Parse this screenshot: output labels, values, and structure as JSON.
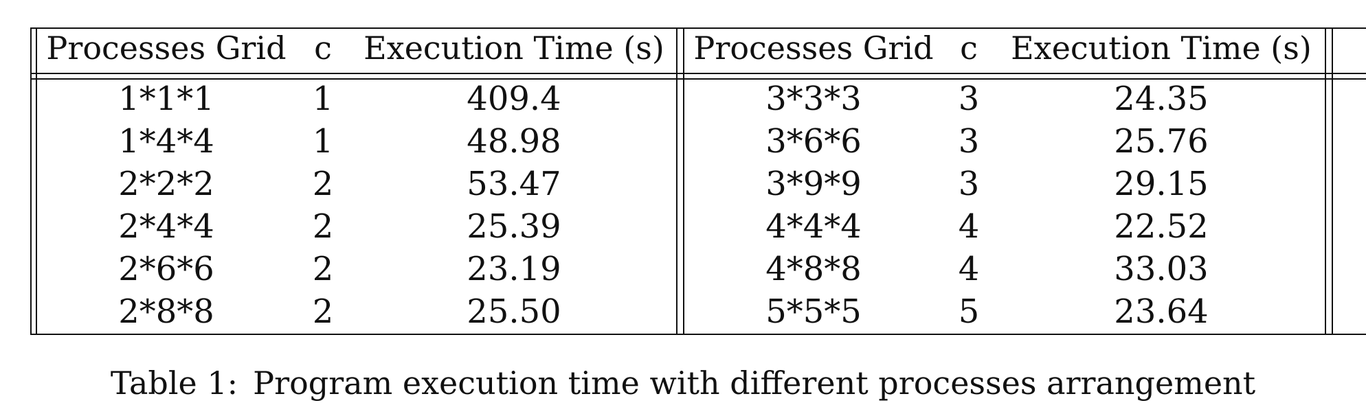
{
  "table": {
    "headers": {
      "left": [
        "Processes Grid",
        "c",
        "Execution Time (s)"
      ],
      "right": [
        "Processes Grid",
        "c",
        "Execution Time (s)"
      ]
    },
    "left_rows": [
      [
        "1*1*1",
        "1",
        "409.4"
      ],
      [
        "1*4*4",
        "1",
        "48.98"
      ],
      [
        "2*2*2",
        "2",
        "53.47"
      ],
      [
        "2*4*4",
        "2",
        "25.39"
      ],
      [
        "2*6*6",
        "2",
        "23.19"
      ],
      [
        "2*8*8",
        "2",
        "25.50"
      ]
    ],
    "right_rows": [
      [
        "3*3*3",
        "3",
        "24.35"
      ],
      [
        "3*6*6",
        "3",
        "25.76"
      ],
      [
        "3*9*9",
        "3",
        "29.15"
      ],
      [
        "4*4*4",
        "4",
        "22.52"
      ],
      [
        "4*8*8",
        "4",
        "33.03"
      ],
      [
        "5*5*5",
        "5",
        "23.64"
      ]
    ]
  },
  "caption": {
    "label": "Table 1:",
    "text": "Program execution time with different processes arrangement"
  }
}
